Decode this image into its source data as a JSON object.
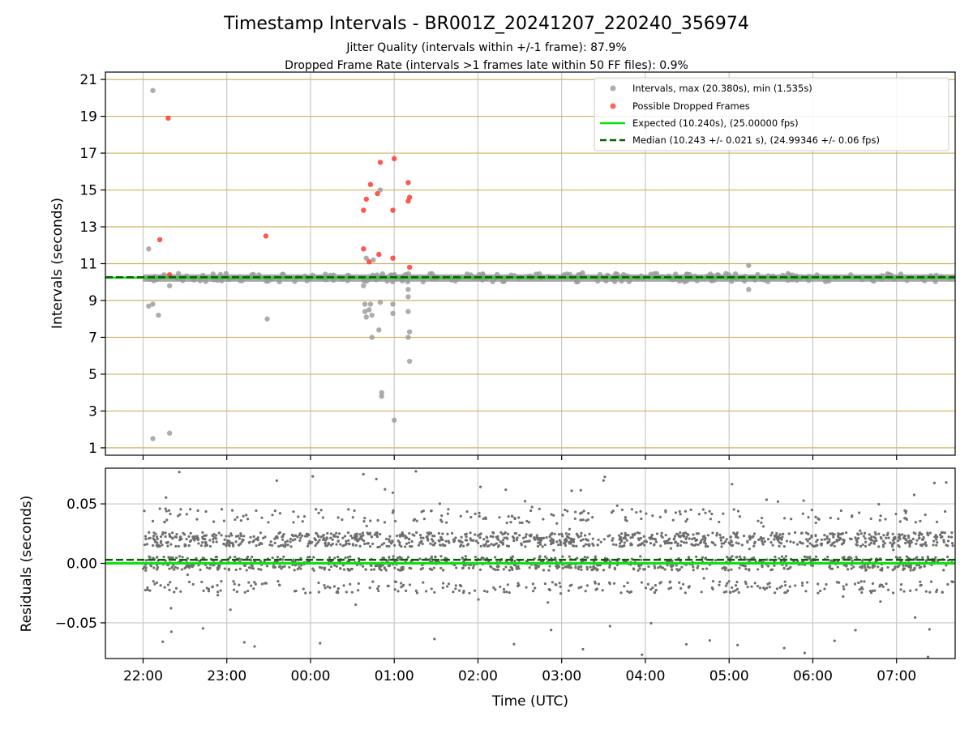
{
  "chart_data": {
    "type": "scatter",
    "title": "Timestamp Intervals - BR001Z_20241207_220240_356974",
    "subtitle_line1": "Jitter Quality (intervals within +/-1 frame): 87.9%",
    "subtitle_line2": "Dropped Frame Rate (intervals >1 frames late within 50 FF files): 0.9%",
    "xlabel": "Time (UTC)",
    "x_tick_labels": [
      "22:00",
      "23:00",
      "00:00",
      "01:00",
      "02:00",
      "03:00",
      "04:00",
      "05:00",
      "06:00",
      "07:00"
    ],
    "x_range_hours_after_2200": [
      -0.45,
      9.7
    ],
    "top_panel": {
      "ylabel": "Intervals (seconds)",
      "ylim": [
        0.6,
        21.4
      ],
      "y_ticks": [
        "1",
        "3",
        "5",
        "7",
        "9",
        "11",
        "13",
        "15",
        "17",
        "19",
        "21"
      ],
      "grid": "horizontal gold lines and vertical grey lines",
      "legend_position": "top-right",
      "legend": {
        "intervals": "Intervals, max (20.380s), min (1.535s)",
        "dropped": "Possible Dropped Frames",
        "expected": "Expected (10.240s), (25.00000 fps)",
        "median": "Median (10.243 +/- 0.021 s), (24.99346 +/- 0.06 fps)"
      },
      "expected_value": 10.24,
      "median_value": 10.243,
      "series": [
        {
          "name": "Intervals, max (20.380s), min (1.535s)",
          "color": "#999999",
          "points": [
            [
              "22:04",
              8.7
            ],
            [
              "22:04",
              11.8
            ],
            [
              "22:07",
              20.4
            ],
            [
              "22:07",
              8.8
            ],
            [
              "22:07",
              1.5
            ],
            [
              "22:11",
              8.2
            ],
            [
              "22:19",
              1.8
            ],
            [
              "22:19",
              9.8
            ],
            [
              "23:29",
              8.0
            ],
            [
              "00:38",
              9.8
            ],
            [
              "00:39",
              8.8
            ],
            [
              "00:39",
              8.4
            ],
            [
              "00:40",
              8.1
            ],
            [
              "00:40",
              11.3
            ],
            [
              "00:42",
              8.5
            ],
            [
              "00:43",
              8.8
            ],
            [
              "00:44",
              7.0
            ],
            [
              "00:44",
              8.2
            ],
            [
              "00:45",
              11.2
            ],
            [
              "00:49",
              7.4
            ],
            [
              "00:50",
              8.9
            ],
            [
              "00:50",
              15.0
            ],
            [
              "00:51",
              3.8
            ],
            [
              "00:51",
              4.0
            ],
            [
              "00:59",
              8.3
            ],
            [
              "00:59",
              8.8
            ],
            [
              "01:00",
              2.5
            ],
            [
              "01:10",
              9.6
            ],
            [
              "01:10",
              9.2
            ],
            [
              "01:10",
              8.4
            ],
            [
              "01:10",
              7.0
            ],
            [
              "01:11",
              7.3
            ],
            [
              "01:11",
              5.7
            ],
            [
              "03:15",
              10.5
            ],
            [
              "05:14",
              10.9
            ],
            [
              "05:14",
              9.6
            ]
          ]
        },
        {
          "name": "Possible Dropped Frames",
          "color": "#ff3b30",
          "points": [
            [
              "22:12",
              12.3
            ],
            [
              "22:18",
              18.9
            ],
            [
              "22:19",
              10.4
            ],
            [
              "23:28",
              12.5
            ],
            [
              "00:38",
              11.8
            ],
            [
              "00:38",
              13.9
            ],
            [
              "00:40",
              14.5
            ],
            [
              "00:43",
              15.3
            ],
            [
              "00:42",
              11.1
            ],
            [
              "00:48",
              14.8
            ],
            [
              "00:49",
              11.5
            ],
            [
              "00:50",
              16.5
            ],
            [
              "00:59",
              13.9
            ],
            [
              "00:59",
              11.3
            ],
            [
              "01:00",
              16.7
            ],
            [
              "01:10",
              15.4
            ],
            [
              "01:10",
              14.4
            ],
            [
              "01:11",
              14.6
            ],
            [
              "01:11",
              10.8
            ]
          ]
        }
      ],
      "band_note": "several thousand interval points cluster between about 9.9 and 10.5 seconds from 22:00 to 07:40"
    },
    "bottom_panel": {
      "ylabel": "Residuals (seconds)",
      "ylim": [
        -0.08,
        0.08
      ],
      "y_ticks": [
        "0.05",
        "0.00",
        "−0.05"
      ],
      "grid": "horizontal and vertical grey lines",
      "expected_line": 0.0,
      "median_line": 0.003,
      "residual_levels_seconds": [
        -0.02,
        0.0,
        0.02,
        0.04
      ],
      "scatter_note": "several thousand residual points from 22:00 to 07:40, densest near 0.00 and 0.02 seconds, sparse out to +/-0.08"
    },
    "colors": {
      "intervals": "#999999",
      "dropped": "#ff3b30",
      "expected": "#12dd12",
      "median": "#006400",
      "grid_top_horizontal": "#d2b262",
      "grid_vertical": "#c8c8c8",
      "residual_points": "#6e6e6e"
    }
  }
}
